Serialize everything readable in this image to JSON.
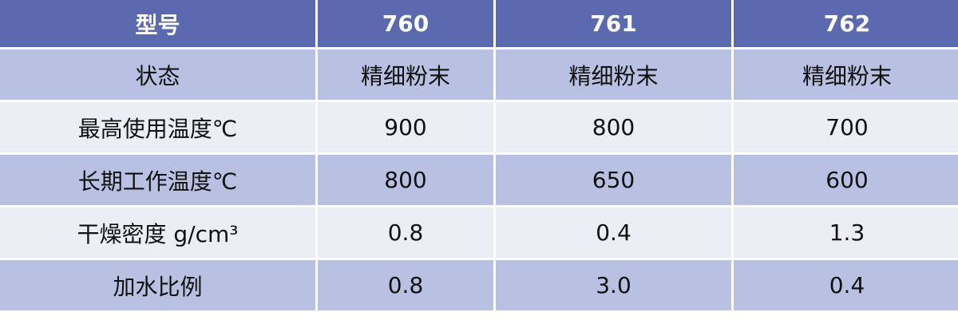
{
  "colors": {
    "header_bg": "#5b6aae",
    "row_dark": "#b8c1e2",
    "row_light": "#eceef6"
  },
  "header": [
    "型号",
    "760",
    "761",
    "762"
  ],
  "rows": [
    [
      "状态",
      "精细粉末",
      "精细粉末",
      "精细粉末"
    ],
    [
      "最高使用温度℃",
      "900",
      "800",
      "700"
    ],
    [
      "长期工作温度℃",
      "800",
      "650",
      "600"
    ],
    [
      "干燥密度 g/cm³",
      "0.8",
      "0.4",
      "1.3"
    ],
    [
      "加水比例",
      "0.8",
      "3.0",
      "0.4"
    ]
  ]
}
